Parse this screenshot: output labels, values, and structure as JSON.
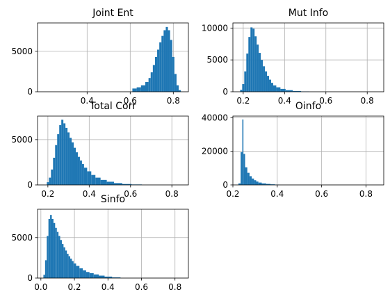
{
  "chart_data": [
    {
      "type": "bar",
      "subtype": "histogram",
      "title": "Joint Ent",
      "xlabel": "",
      "ylabel": "",
      "grid": true,
      "color": "#1f77b4",
      "xlim": [
        0.17,
        0.87
      ],
      "ylim": [
        0,
        8500
      ],
      "xticks": [
        0.4,
        0.6,
        0.8
      ],
      "xtick_labels": [
        "0.4",
        "0.6",
        "0.8"
      ],
      "yticks": [
        0,
        5000
      ],
      "ytick_labels": [
        "0",
        "5000"
      ],
      "x": [
        0.62,
        0.64,
        0.66,
        0.68,
        0.69,
        0.7,
        0.71,
        0.72,
        0.73,
        0.74,
        0.75,
        0.76,
        0.77,
        0.78,
        0.79,
        0.8,
        0.81,
        0.82,
        0.83
      ],
      "values": [
        400,
        550,
        800,
        1200,
        1700,
        2400,
        3300,
        4300,
        5200,
        6100,
        6900,
        7600,
        8000,
        7600,
        6400,
        4300,
        2200,
        800,
        200
      ]
    },
    {
      "type": "bar",
      "subtype": "histogram",
      "title": "Mut Info",
      "xlabel": "",
      "ylabel": "",
      "grid": true,
      "color": "#1f77b4",
      "xlim": [
        0.15,
        0.88
      ],
      "ylim": [
        0,
        10800
      ],
      "xticks": [
        0.2,
        0.4,
        0.6,
        0.8
      ],
      "xtick_labels": [
        "0.2",
        "0.4",
        "0.6",
        "0.8"
      ],
      "yticks": [
        0,
        5000,
        10000
      ],
      "ytick_labels": [
        "0",
        "5000",
        "10000"
      ],
      "x": [
        0.19,
        0.2,
        0.21,
        0.22,
        0.23,
        0.24,
        0.25,
        0.26,
        0.27,
        0.28,
        0.29,
        0.3,
        0.31,
        0.32,
        0.33,
        0.34,
        0.35,
        0.37,
        0.39,
        0.42,
        0.46,
        0.5
      ],
      "values": [
        300,
        1200,
        3200,
        6000,
        8600,
        10100,
        9900,
        8700,
        7400,
        6100,
        5000,
        4000,
        3200,
        2500,
        1900,
        1400,
        1000,
        700,
        450,
        250,
        120,
        50
      ]
    },
    {
      "type": "bar",
      "subtype": "histogram",
      "title": "Total Corr",
      "xlabel": "",
      "ylabel": "",
      "grid": true,
      "color": "#1f77b4",
      "xlim": [
        0.15,
        0.88
      ],
      "ylim": [
        0,
        7600
      ],
      "xticks": [
        0.2,
        0.4,
        0.6,
        0.8
      ],
      "xtick_labels": [
        "0.2",
        "0.4",
        "0.6",
        "0.8"
      ],
      "yticks": [
        0,
        5000
      ],
      "ytick_labels": [
        "0",
        "5000"
      ],
      "x": [
        0.2,
        0.21,
        0.22,
        0.23,
        0.24,
        0.25,
        0.26,
        0.27,
        0.28,
        0.29,
        0.3,
        0.31,
        0.32,
        0.33,
        0.34,
        0.35,
        0.36,
        0.37,
        0.38,
        0.4,
        0.42,
        0.44,
        0.47,
        0.5,
        0.54,
        0.58,
        0.63
      ],
      "values": [
        300,
        800,
        1700,
        3000,
        4400,
        5600,
        6600,
        7200,
        6800,
        6300,
        5800,
        5200,
        4700,
        4100,
        3600,
        3100,
        2700,
        2300,
        1900,
        1500,
        1100,
        800,
        550,
        350,
        200,
        100,
        50
      ]
    },
    {
      "type": "bar",
      "subtype": "histogram",
      "title": "Oinfo",
      "xlabel": "",
      "ylabel": "",
      "grid": true,
      "color": "#1f77b4",
      "xlim": [
        0.2,
        0.88
      ],
      "ylim": [
        0,
        41000
      ],
      "xticks": [
        0.2,
        0.4,
        0.6,
        0.8
      ],
      "xtick_labels": [
        "0.2",
        "0.4",
        "0.6",
        "0.8"
      ],
      "yticks": [
        0,
        20000,
        40000
      ],
      "ytick_labels": [
        "0",
        "20000",
        "40000"
      ],
      "x": [
        0.23,
        0.24,
        0.245,
        0.25,
        0.26,
        0.27,
        0.28,
        0.29,
        0.3,
        0.31,
        0.32,
        0.34,
        0.36,
        0.38,
        0.4
      ],
      "values": [
        900,
        19500,
        39000,
        18500,
        10500,
        7200,
        5200,
        3800,
        2800,
        2000,
        1400,
        900,
        600,
        350,
        150
      ]
    },
    {
      "type": "bar",
      "subtype": "histogram",
      "title": "Sinfo",
      "xlabel": "",
      "ylabel": "",
      "grid": true,
      "color": "#1f77b4",
      "xlim": [
        -0.02,
        0.88
      ],
      "ylim": [
        0,
        8500
      ],
      "xticks": [
        0.0,
        0.2,
        0.4,
        0.6,
        0.8
      ],
      "xtick_labels": [
        "0.0",
        "0.2",
        "0.4",
        "0.6",
        "0.8"
      ],
      "yticks": [
        0,
        5000
      ],
      "ytick_labels": [
        "0",
        "5000"
      ],
      "x": [
        0.02,
        0.03,
        0.04,
        0.05,
        0.06,
        0.07,
        0.08,
        0.09,
        0.1,
        0.11,
        0.12,
        0.13,
        0.14,
        0.15,
        0.16,
        0.17,
        0.18,
        0.19,
        0.2,
        0.22,
        0.24,
        0.26,
        0.28,
        0.3,
        0.33,
        0.36,
        0.4,
        0.45
      ],
      "values": [
        400,
        2200,
        5200,
        7300,
        7800,
        7300,
        6800,
        6200,
        5700,
        5200,
        4700,
        4200,
        3800,
        3400,
        3000,
        2700,
        2400,
        2100,
        1800,
        1500,
        1200,
        950,
        750,
        600,
        450,
        300,
        180,
        80
      ]
    }
  ]
}
